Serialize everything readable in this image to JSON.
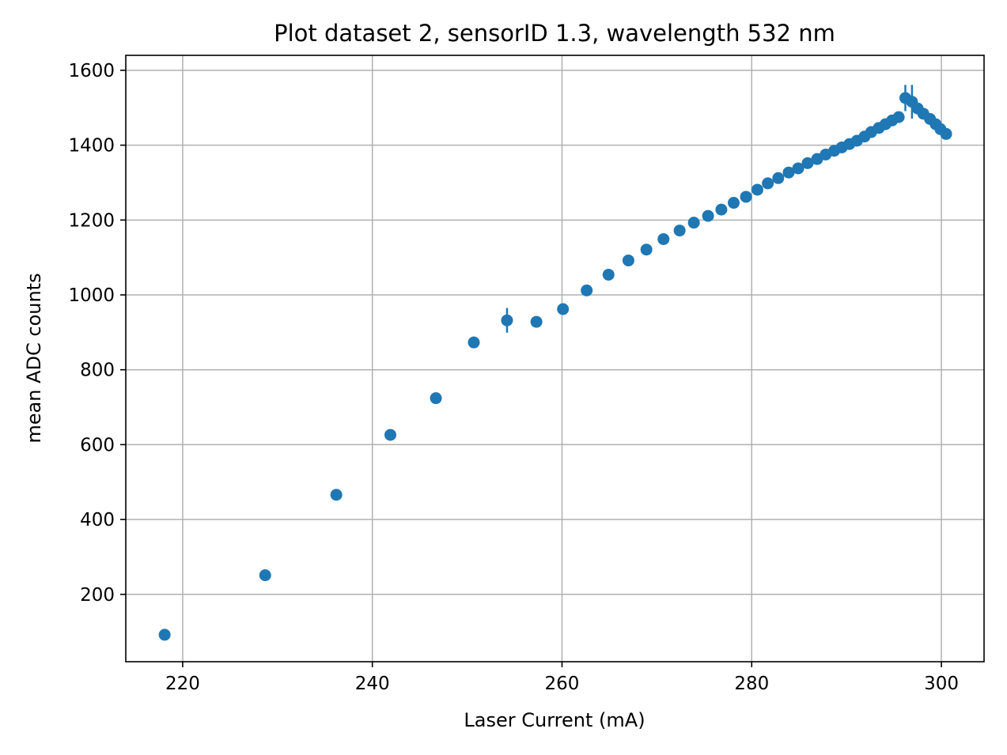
{
  "chart_data": {
    "type": "scatter",
    "title": "Plot dataset 2, sensorID 1.3, wavelength 532 nm",
    "xlabel": "Laser Current (mA)",
    "ylabel": "mean ADC counts",
    "xlim": [
      214,
      304.5
    ],
    "ylim": [
      20,
      1640
    ],
    "xticks": [
      220,
      240,
      260,
      280,
      300
    ],
    "yticks": [
      200,
      400,
      600,
      800,
      1000,
      1200,
      1400,
      1600
    ],
    "grid": true,
    "marker_color": "#1f77b4",
    "points": [
      {
        "x": 218.1,
        "y": 92
      },
      {
        "x": 228.7,
        "y": 251
      },
      {
        "x": 236.2,
        "y": 466
      },
      {
        "x": 241.9,
        "y": 626
      },
      {
        "x": 246.7,
        "y": 724
      },
      {
        "x": 250.7,
        "y": 873
      },
      {
        "x": 254.2,
        "y": 932,
        "err": 33
      },
      {
        "x": 257.3,
        "y": 928
      },
      {
        "x": 260.1,
        "y": 962
      },
      {
        "x": 262.6,
        "y": 1012
      },
      {
        "x": 264.9,
        "y": 1054
      },
      {
        "x": 267.0,
        "y": 1092
      },
      {
        "x": 268.9,
        "y": 1121
      },
      {
        "x": 270.7,
        "y": 1149
      },
      {
        "x": 272.4,
        "y": 1172
      },
      {
        "x": 273.9,
        "y": 1193
      },
      {
        "x": 275.4,
        "y": 1211
      },
      {
        "x": 276.8,
        "y": 1228
      },
      {
        "x": 278.1,
        "y": 1246
      },
      {
        "x": 279.4,
        "y": 1262
      },
      {
        "x": 280.6,
        "y": 1281
      },
      {
        "x": 281.7,
        "y": 1298
      },
      {
        "x": 282.8,
        "y": 1312
      },
      {
        "x": 283.9,
        "y": 1327
      },
      {
        "x": 284.9,
        "y": 1338
      },
      {
        "x": 285.9,
        "y": 1352
      },
      {
        "x": 286.9,
        "y": 1363
      },
      {
        "x": 287.8,
        "y": 1375
      },
      {
        "x": 288.7,
        "y": 1385
      },
      {
        "x": 289.5,
        "y": 1394
      },
      {
        "x": 290.3,
        "y": 1403
      },
      {
        "x": 291.1,
        "y": 1412
      },
      {
        "x": 291.9,
        "y": 1423
      },
      {
        "x": 292.6,
        "y": 1435
      },
      {
        "x": 293.4,
        "y": 1446
      },
      {
        "x": 294.1,
        "y": 1456
      },
      {
        "x": 294.8,
        "y": 1466
      },
      {
        "x": 295.5,
        "y": 1475
      },
      {
        "x": 296.2,
        "y": 1526,
        "err": 35
      },
      {
        "x": 296.9,
        "y": 1516,
        "err": 45
      },
      {
        "x": 297.5,
        "y": 1498
      },
      {
        "x": 298.1,
        "y": 1484
      },
      {
        "x": 298.8,
        "y": 1470
      },
      {
        "x": 299.4,
        "y": 1456
      },
      {
        "x": 299.9,
        "y": 1443
      },
      {
        "x": 300.5,
        "y": 1430
      }
    ]
  }
}
